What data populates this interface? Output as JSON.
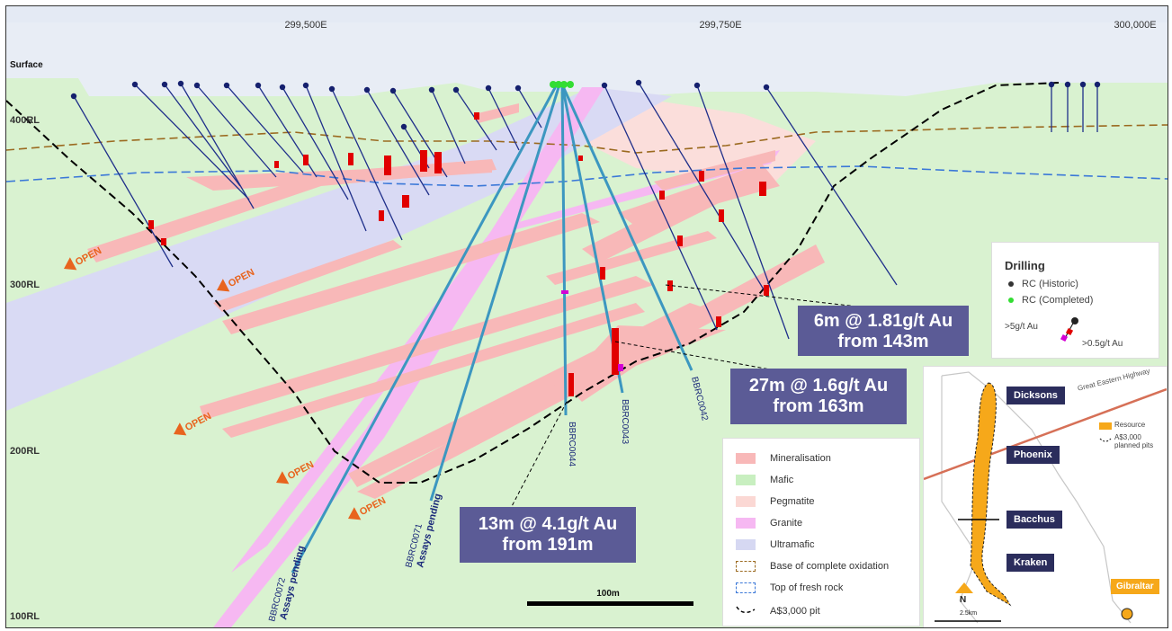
{
  "section": {
    "surface_label": "Surface",
    "easting_labels": [
      "299,500E",
      "299,750E",
      "300,000E"
    ],
    "rl_labels": [
      "400RL",
      "300RL",
      "200RL",
      "100RL"
    ],
    "open_label": "OPEN",
    "scale_label": "100m",
    "holes": [
      {
        "id": "BBRC0044",
        "note": ""
      },
      {
        "id": "BBRC0043",
        "note": ""
      },
      {
        "id": "BBRC0042",
        "note": ""
      },
      {
        "id": "BBRC0071",
        "note": "Assays pending"
      },
      {
        "id": "BBRC0072",
        "note": "Assays pending"
      }
    ],
    "callouts": [
      {
        "line1": "6m @ 1.81g/t Au",
        "line2": "from 143m"
      },
      {
        "line1": "27m @ 1.6g/t Au",
        "line2": "from 163m"
      },
      {
        "line1": "13m @ 4.1g/t Au",
        "line2": "from 191m"
      }
    ]
  },
  "drilling_legend": {
    "title": "Drilling",
    "items": [
      {
        "label": "RC (Historic)",
        "color": "#333333"
      },
      {
        "label": "RC (Completed)",
        "color": "#33dd33"
      }
    ],
    "grade_high": ">5g/t Au",
    "grade_low": ">0.5g/t Au"
  },
  "geology_legend": [
    {
      "label": "Mineralisation",
      "color": "#f8b8b8"
    },
    {
      "label": "Mafic",
      "color": "#c8efc0"
    },
    {
      "label": "Pegmatite",
      "color": "#fbd8d4"
    },
    {
      "label": "Granite",
      "color": "#f6b8f2"
    },
    {
      "label": "Ultramafic",
      "color": "#d6d8f2"
    },
    {
      "label": "Base of complete oxidation",
      "color": "#9b6a20"
    },
    {
      "label": "Top of fresh rock",
      "color": "#3b78d8"
    },
    {
      "label": "A$3,000 pit",
      "color": "#000000"
    }
  ],
  "inset_map": {
    "deposits": [
      "Dicksons",
      "Phoenix",
      "Bacchus",
      "Kraken",
      "Gibraltar"
    ],
    "highway": "Great Eastern Highway",
    "legend_resource": "Resource",
    "legend_pits": "A$3,000 planned pits",
    "north": "N",
    "scale": "2.5km"
  }
}
